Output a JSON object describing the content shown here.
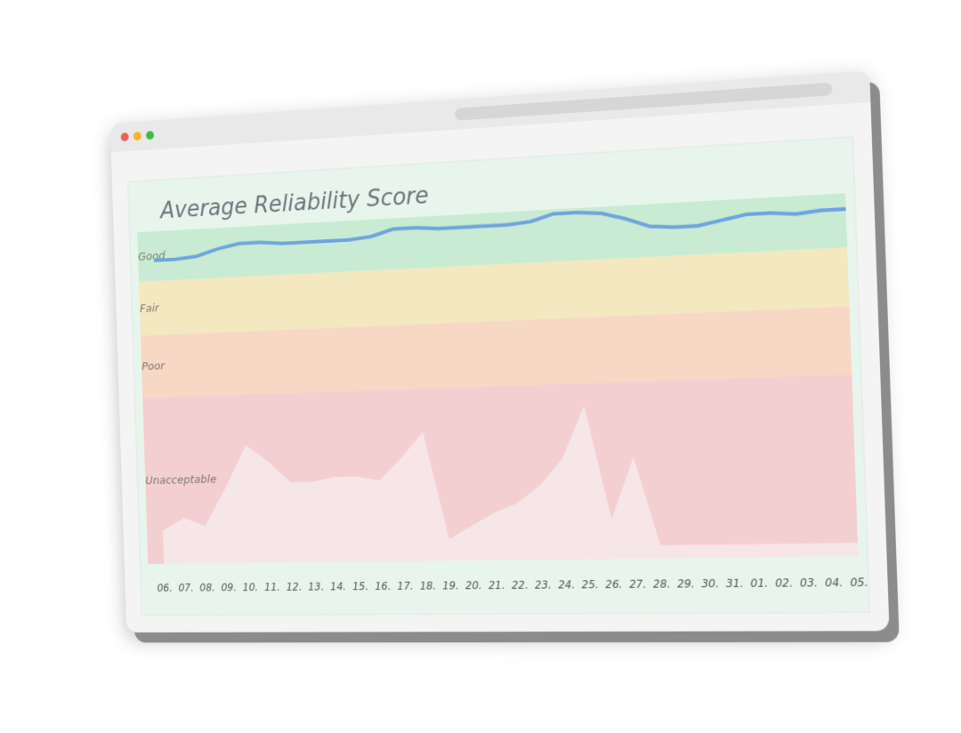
{
  "chart_data": {
    "type": "line",
    "title": "Average Reliability Score",
    "categories": [
      "06.",
      "07.",
      "08.",
      "09.",
      "10.",
      "11.",
      "12.",
      "13.",
      "14.",
      "15.",
      "16.",
      "17.",
      "18.",
      "19.",
      "20.",
      "21.",
      "22.",
      "23.",
      "24.",
      "25.",
      "26.",
      "27.",
      "28.",
      "29.",
      "30.",
      "31.",
      "01.",
      "02.",
      "03.",
      "04.",
      "05."
    ],
    "ylim": [
      0,
      80
    ],
    "bands": [
      {
        "label": "Good",
        "range": [
          68,
          80
        ],
        "color": "#c9ebd3"
      },
      {
        "label": "Fair",
        "range": [
          55,
          68
        ],
        "color": "#f3e8bf"
      },
      {
        "label": "Poor",
        "range": [
          40,
          55
        ],
        "color": "#f6d8c4"
      },
      {
        "label": "Unacceptable",
        "range": [
          0,
          40
        ],
        "color": "#f4cfd2"
      }
    ],
    "series": [
      {
        "color": "#f7e6e7",
        "values": [
          8,
          11,
          9,
          18,
          28,
          24,
          19,
          19,
          20,
          20,
          19,
          24,
          30,
          5,
          8,
          11,
          13,
          17,
          23,
          35,
          9,
          23,
          3,
          3,
          3,
          3,
          3,
          3,
          3,
          3,
          3
        ]
      },
      {
        "color": "#6fa3e0",
        "values": [
          73,
          73,
          73.5,
          75,
          76,
          76,
          75.5,
          75.5,
          75.5,
          75.5,
          76,
          77.5,
          77.5,
          77,
          77,
          77,
          77,
          77.5,
          79,
          79,
          78.5,
          77,
          75,
          74.5,
          74.5,
          75.5,
          76.5,
          76.5,
          76,
          76.5,
          76.5
        ]
      }
    ]
  }
}
